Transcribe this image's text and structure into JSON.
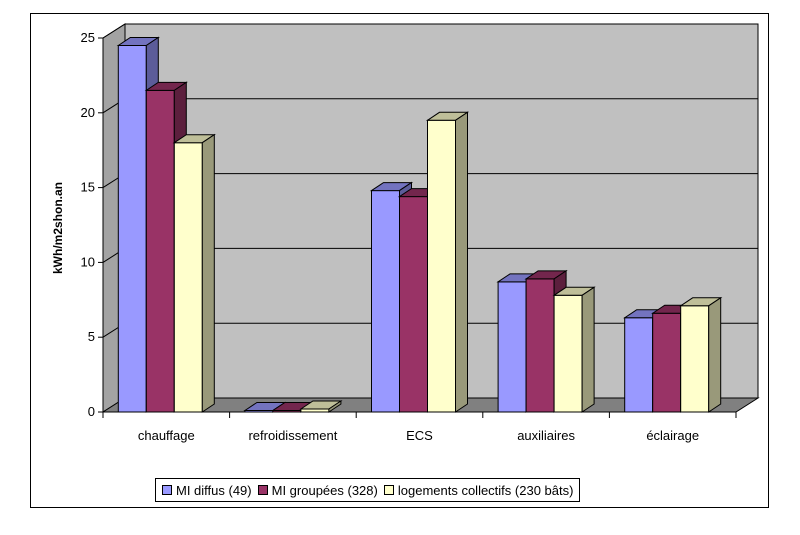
{
  "chart_data": {
    "type": "bar",
    "title": "",
    "xlabel": "",
    "ylabel": "kWh/m2shon.an",
    "ylim": [
      0,
      25
    ],
    "yticks": [
      "0",
      "5",
      "10",
      "15",
      "20",
      "25"
    ],
    "grid": true,
    "legend_position": "bottom",
    "categories": [
      "chauffage",
      "refroidissement",
      "ECS",
      "auxiliaires",
      "éclairage"
    ],
    "series": [
      {
        "name": "MI diffus (49)",
        "color": "#9999ff",
        "values": [
          24.5,
          0.1,
          14.8,
          8.7,
          6.3
        ]
      },
      {
        "name": "MI groupées (328)",
        "color": "#993366",
        "values": [
          21.5,
          0.1,
          14.4,
          8.9,
          6.6
        ]
      },
      {
        "name": "logements collectifs (230 bâts)",
        "color": "#ffffcc",
        "values": [
          18.0,
          0.2,
          19.5,
          7.8,
          7.1
        ]
      }
    ],
    "colors": {
      "plot_background": "#c0c0c0",
      "floor": "#808080"
    }
  }
}
